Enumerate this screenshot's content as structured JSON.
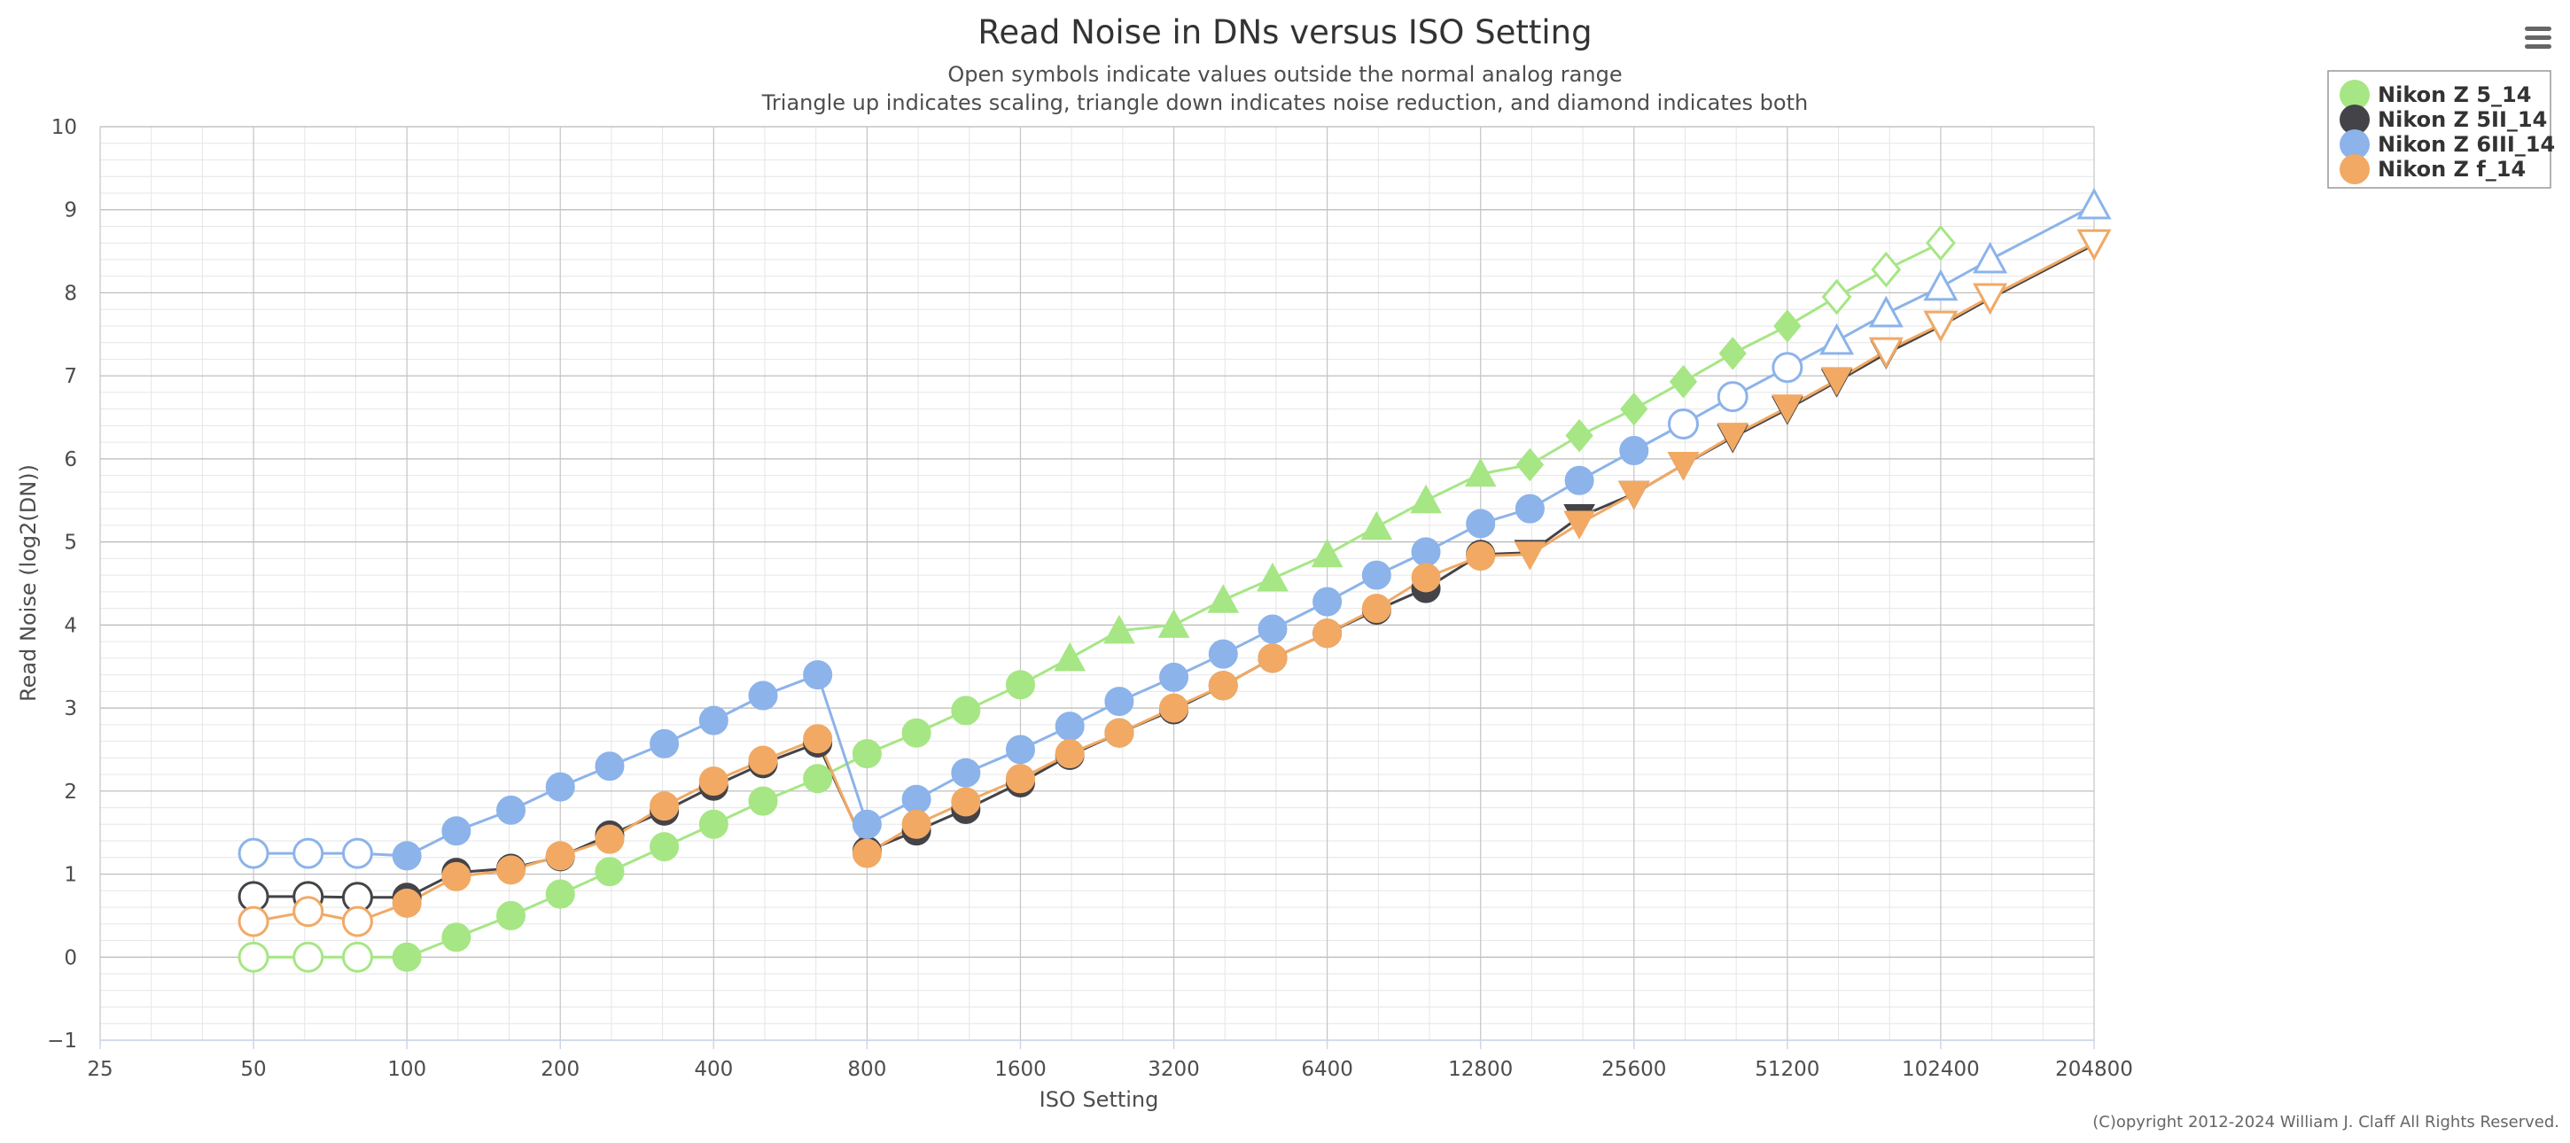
{
  "menu": {
    "icon": "hamburger-menu-icon"
  },
  "credit": "(C)opyright 2012-2024 William J. Claff All Rights Reserved.",
  "chart_data": {
    "type": "line",
    "title": "Read Noise in DNs versus ISO Setting",
    "subtitle_lines": [
      "Open symbols indicate values outside the normal analog range",
      "Triangle up indicates scaling, triangle down indicates noise reduction, and diamond indicates both"
    ],
    "xlabel": "ISO Setting",
    "ylabel": "Read Noise (log2(DN))",
    "x_scale": "log2",
    "xlim": [
      25,
      204800
    ],
    "ylim": [
      -1,
      10
    ],
    "xticks": [
      25,
      50,
      100,
      200,
      400,
      800,
      1600,
      3200,
      6400,
      12800,
      25600,
      51200,
      102400,
      204800
    ],
    "yticks": [
      -1,
      0,
      1,
      2,
      3,
      4,
      5,
      6,
      7,
      8,
      9,
      10
    ],
    "grid": true,
    "legend_position": "top-right",
    "marker_legend": {
      "c": "circle",
      "u": "triangle-up",
      "d": "triangle-down",
      "m": "diamond",
      "open": "outside normal analog range"
    },
    "series": [
      {
        "name": "Nikon Z 5_14",
        "color": "#a6e684",
        "points": [
          {
            "iso": 50,
            "y": 0.0,
            "m": "c",
            "open": true
          },
          {
            "iso": 64,
            "y": 0.0,
            "m": "c",
            "open": true
          },
          {
            "iso": 80,
            "y": 0.0,
            "m": "c",
            "open": true
          },
          {
            "iso": 100,
            "y": 0.0,
            "m": "c"
          },
          {
            "iso": 125,
            "y": 0.24,
            "m": "c"
          },
          {
            "iso": 160,
            "y": 0.5,
            "m": "c"
          },
          {
            "iso": 200,
            "y": 0.76,
            "m": "c"
          },
          {
            "iso": 250,
            "y": 1.03,
            "m": "c"
          },
          {
            "iso": 320,
            "y": 1.33,
            "m": "c"
          },
          {
            "iso": 400,
            "y": 1.6,
            "m": "c"
          },
          {
            "iso": 500,
            "y": 1.88,
            "m": "c"
          },
          {
            "iso": 640,
            "y": 2.15,
            "m": "c"
          },
          {
            "iso": 800,
            "y": 2.45,
            "m": "c"
          },
          {
            "iso": 1000,
            "y": 2.7,
            "m": "c"
          },
          {
            "iso": 1250,
            "y": 2.97,
            "m": "c"
          },
          {
            "iso": 1600,
            "y": 3.28,
            "m": "c"
          },
          {
            "iso": 2000,
            "y": 3.6,
            "m": "u"
          },
          {
            "iso": 2500,
            "y": 3.93,
            "m": "u"
          },
          {
            "iso": 3200,
            "y": 4.0,
            "m": "u"
          },
          {
            "iso": 4000,
            "y": 4.3,
            "m": "u"
          },
          {
            "iso": 5000,
            "y": 4.56,
            "m": "u"
          },
          {
            "iso": 6400,
            "y": 4.85,
            "m": "u"
          },
          {
            "iso": 8000,
            "y": 5.18,
            "m": "u"
          },
          {
            "iso": 10000,
            "y": 5.5,
            "m": "u"
          },
          {
            "iso": 12800,
            "y": 5.82,
            "m": "u"
          },
          {
            "iso": 16000,
            "y": 5.93,
            "m": "m"
          },
          {
            "iso": 20000,
            "y": 6.28,
            "m": "m"
          },
          {
            "iso": 25600,
            "y": 6.6,
            "m": "m"
          },
          {
            "iso": 32000,
            "y": 6.93,
            "m": "m"
          },
          {
            "iso": 40000,
            "y": 7.27,
            "m": "m"
          },
          {
            "iso": 51200,
            "y": 7.6,
            "m": "m"
          },
          {
            "iso": 64000,
            "y": 7.95,
            "m": "m",
            "open": true
          },
          {
            "iso": 80000,
            "y": 8.28,
            "m": "m",
            "open": true
          },
          {
            "iso": 102400,
            "y": 8.6,
            "m": "m",
            "open": true
          }
        ]
      },
      {
        "name": "Nikon Z 5II_14",
        "color": "#434348",
        "points": [
          {
            "iso": 50,
            "y": 0.73,
            "m": "c",
            "open": true
          },
          {
            "iso": 64,
            "y": 0.73,
            "m": "c",
            "open": true
          },
          {
            "iso": 80,
            "y": 0.72,
            "m": "c",
            "open": true
          },
          {
            "iso": 100,
            "y": 0.72,
            "m": "c"
          },
          {
            "iso": 125,
            "y": 1.02,
            "m": "c"
          },
          {
            "iso": 160,
            "y": 1.07,
            "m": "c"
          },
          {
            "iso": 200,
            "y": 1.21,
            "m": "c"
          },
          {
            "iso": 250,
            "y": 1.47,
            "m": "c"
          },
          {
            "iso": 320,
            "y": 1.76,
            "m": "c"
          },
          {
            "iso": 400,
            "y": 2.06,
            "m": "c"
          },
          {
            "iso": 500,
            "y": 2.33,
            "m": "c"
          },
          {
            "iso": 640,
            "y": 2.58,
            "m": "c"
          },
          {
            "iso": 800,
            "y": 1.28,
            "m": "c"
          },
          {
            "iso": 1000,
            "y": 1.52,
            "m": "c"
          },
          {
            "iso": 1250,
            "y": 1.78,
            "m": "c"
          },
          {
            "iso": 1600,
            "y": 2.1,
            "m": "c"
          },
          {
            "iso": 2000,
            "y": 2.43,
            "m": "c"
          },
          {
            "iso": 2500,
            "y": 2.7,
            "m": "c"
          },
          {
            "iso": 3200,
            "y": 2.98,
            "m": "c"
          },
          {
            "iso": 4000,
            "y": 3.27,
            "m": "c"
          },
          {
            "iso": 5000,
            "y": 3.6,
            "m": "c"
          },
          {
            "iso": 6400,
            "y": 3.9,
            "m": "c"
          },
          {
            "iso": 8000,
            "y": 4.18,
            "m": "c"
          },
          {
            "iso": 10000,
            "y": 4.44,
            "m": "c"
          },
          {
            "iso": 12800,
            "y": 4.85,
            "m": "c"
          },
          {
            "iso": 16000,
            "y": 4.87,
            "m": "d"
          },
          {
            "iso": 20000,
            "y": 5.3,
            "m": "d"
          },
          {
            "iso": 25600,
            "y": 5.58,
            "m": "d"
          },
          {
            "iso": 32000,
            "y": 5.93,
            "m": "d"
          },
          {
            "iso": 40000,
            "y": 6.26,
            "m": "d"
          },
          {
            "iso": 51200,
            "y": 6.6,
            "m": "d"
          },
          {
            "iso": 64000,
            "y": 6.93,
            "m": "d"
          },
          {
            "iso": 80000,
            "y": 7.27,
            "m": "d"
          },
          {
            "iso": 102400,
            "y": 7.6,
            "m": "d"
          },
          {
            "iso": 128000,
            "y": 7.93,
            "m": "d"
          },
          {
            "iso": 204800,
            "y": 8.58,
            "m": "d"
          }
        ]
      },
      {
        "name": "Nikon Z 6III_14",
        "color": "#8cb3ea",
        "points": [
          {
            "iso": 50,
            "y": 1.25,
            "m": "c",
            "open": true
          },
          {
            "iso": 64,
            "y": 1.25,
            "m": "c",
            "open": true
          },
          {
            "iso": 80,
            "y": 1.25,
            "m": "c",
            "open": true
          },
          {
            "iso": 100,
            "y": 1.22,
            "m": "c"
          },
          {
            "iso": 125,
            "y": 1.52,
            "m": "c"
          },
          {
            "iso": 160,
            "y": 1.77,
            "m": "c"
          },
          {
            "iso": 200,
            "y": 2.05,
            "m": "c"
          },
          {
            "iso": 250,
            "y": 2.3,
            "m": "c"
          },
          {
            "iso": 320,
            "y": 2.57,
            "m": "c"
          },
          {
            "iso": 400,
            "y": 2.85,
            "m": "c"
          },
          {
            "iso": 500,
            "y": 3.15,
            "m": "c"
          },
          {
            "iso": 640,
            "y": 3.4,
            "m": "c"
          },
          {
            "iso": 800,
            "y": 1.6,
            "m": "c"
          },
          {
            "iso": 1000,
            "y": 1.9,
            "m": "c"
          },
          {
            "iso": 1250,
            "y": 2.22,
            "m": "c"
          },
          {
            "iso": 1600,
            "y": 2.5,
            "m": "c"
          },
          {
            "iso": 2000,
            "y": 2.78,
            "m": "c"
          },
          {
            "iso": 2500,
            "y": 3.08,
            "m": "c"
          },
          {
            "iso": 3200,
            "y": 3.37,
            "m": "c"
          },
          {
            "iso": 4000,
            "y": 3.65,
            "m": "c"
          },
          {
            "iso": 5000,
            "y": 3.95,
            "m": "c"
          },
          {
            "iso": 6400,
            "y": 4.28,
            "m": "c"
          },
          {
            "iso": 8000,
            "y": 4.6,
            "m": "c"
          },
          {
            "iso": 10000,
            "y": 4.88,
            "m": "c"
          },
          {
            "iso": 12800,
            "y": 5.22,
            "m": "c"
          },
          {
            "iso": 16000,
            "y": 5.4,
            "m": "c"
          },
          {
            "iso": 20000,
            "y": 5.74,
            "m": "c"
          },
          {
            "iso": 25600,
            "y": 6.1,
            "m": "c"
          },
          {
            "iso": 32000,
            "y": 6.42,
            "m": "c",
            "open": true
          },
          {
            "iso": 40000,
            "y": 6.75,
            "m": "c",
            "open": true
          },
          {
            "iso": 51200,
            "y": 7.1,
            "m": "c",
            "open": true
          },
          {
            "iso": 64000,
            "y": 7.42,
            "m": "u",
            "open": true
          },
          {
            "iso": 80000,
            "y": 7.75,
            "m": "u",
            "open": true
          },
          {
            "iso": 102400,
            "y": 8.07,
            "m": "u",
            "open": true
          },
          {
            "iso": 128000,
            "y": 8.4,
            "m": "u",
            "open": true
          },
          {
            "iso": 204800,
            "y": 9.05,
            "m": "u",
            "open": true
          }
        ]
      },
      {
        "name": "Nikon Z f_14",
        "color": "#f1a964",
        "points": [
          {
            "iso": 50,
            "y": 0.43,
            "m": "c",
            "open": true
          },
          {
            "iso": 64,
            "y": 0.55,
            "m": "c",
            "open": true
          },
          {
            "iso": 80,
            "y": 0.43,
            "m": "c",
            "open": true
          },
          {
            "iso": 100,
            "y": 0.65,
            "m": "c"
          },
          {
            "iso": 125,
            "y": 0.97,
            "m": "c"
          },
          {
            "iso": 160,
            "y": 1.05,
            "m": "c"
          },
          {
            "iso": 200,
            "y": 1.22,
            "m": "c"
          },
          {
            "iso": 250,
            "y": 1.42,
            "m": "c"
          },
          {
            "iso": 320,
            "y": 1.82,
            "m": "c"
          },
          {
            "iso": 400,
            "y": 2.12,
            "m": "c"
          },
          {
            "iso": 500,
            "y": 2.37,
            "m": "c"
          },
          {
            "iso": 640,
            "y": 2.63,
            "m": "c"
          },
          {
            "iso": 800,
            "y": 1.25,
            "m": "c"
          },
          {
            "iso": 1000,
            "y": 1.6,
            "m": "c"
          },
          {
            "iso": 1250,
            "y": 1.87,
            "m": "c"
          },
          {
            "iso": 1600,
            "y": 2.15,
            "m": "c"
          },
          {
            "iso": 2000,
            "y": 2.45,
            "m": "c"
          },
          {
            "iso": 2500,
            "y": 2.7,
            "m": "c"
          },
          {
            "iso": 3200,
            "y": 3.0,
            "m": "c"
          },
          {
            "iso": 4000,
            "y": 3.27,
            "m": "c"
          },
          {
            "iso": 5000,
            "y": 3.6,
            "m": "c"
          },
          {
            "iso": 6400,
            "y": 3.9,
            "m": "c"
          },
          {
            "iso": 8000,
            "y": 4.2,
            "m": "c"
          },
          {
            "iso": 10000,
            "y": 4.57,
            "m": "c"
          },
          {
            "iso": 12800,
            "y": 4.83,
            "m": "c"
          },
          {
            "iso": 16000,
            "y": 4.85,
            "m": "d"
          },
          {
            "iso": 20000,
            "y": 5.22,
            "m": "d"
          },
          {
            "iso": 25600,
            "y": 5.58,
            "m": "d"
          },
          {
            "iso": 32000,
            "y": 5.93,
            "m": "d"
          },
          {
            "iso": 40000,
            "y": 6.28,
            "m": "d"
          },
          {
            "iso": 51200,
            "y": 6.62,
            "m": "d"
          },
          {
            "iso": 64000,
            "y": 6.95,
            "m": "d"
          },
          {
            "iso": 80000,
            "y": 7.3,
            "m": "d",
            "open": true
          },
          {
            "iso": 102400,
            "y": 7.62,
            "m": "d",
            "open": true
          },
          {
            "iso": 128000,
            "y": 7.95,
            "m": "d",
            "open": true
          },
          {
            "iso": 204800,
            "y": 8.6,
            "m": "d",
            "open": true
          }
        ]
      }
    ]
  }
}
